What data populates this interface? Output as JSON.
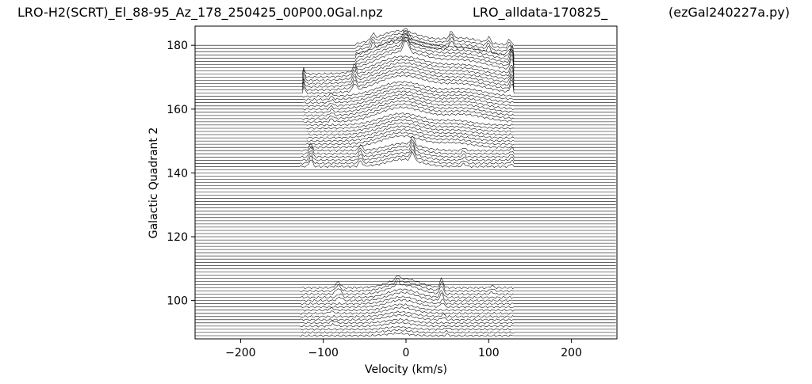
{
  "titles": {
    "left": "LRO-H2(SCRT)_El_88-95_Az_178_250425_00P00.0Gal.npz",
    "middle": "LRO_alldata-170825_",
    "right": "(ezGal240227a.py)"
  },
  "chart_data": {
    "type": "line",
    "subtype": "stacked-offset-spectra",
    "xlabel": "Velocity (km/s)",
    "ylabel": "Galactic Quadrant 2",
    "xlim": [
      -255,
      255
    ],
    "ylim": [
      88,
      186
    ],
    "xticks": [
      -200,
      -100,
      0,
      100,
      200
    ],
    "yticks": [
      100,
      120,
      140,
      160,
      180
    ],
    "grid": false,
    "line_color": "#000000",
    "series": [
      {
        "galactic_longitude": 90,
        "spectrum_extent_kms": [
          -128,
          130
        ],
        "features": [
          {
            "v": -10,
            "amp": 0.8,
            "w": 14
          },
          {
            "v": 50,
            "amp": 0.5,
            "w": 2
          }
        ]
      },
      {
        "galactic_longitude": 92,
        "spectrum_extent_kms": [
          -128,
          130
        ],
        "features": [
          {
            "v": -8,
            "amp": 1.2,
            "w": 15
          },
          {
            "v": -88,
            "amp": 0.6,
            "w": 3
          }
        ]
      },
      {
        "galactic_longitude": 94,
        "spectrum_extent_kms": [
          -128,
          130
        ],
        "features": [
          {
            "v": -7,
            "amp": 1.6,
            "w": 16
          },
          {
            "v": 45,
            "amp": 0.8,
            "w": 2
          }
        ]
      },
      {
        "galactic_longitude": 96,
        "spectrum_extent_kms": [
          -128,
          130
        ],
        "features": [
          {
            "v": -6,
            "amp": 2.0,
            "w": 16
          },
          {
            "v": -90,
            "amp": 0.7,
            "w": 3
          }
        ]
      },
      {
        "galactic_longitude": 98,
        "spectrum_extent_kms": [
          -128,
          130
        ],
        "features": [
          {
            "v": -5,
            "amp": 2.4,
            "w": 17
          },
          {
            "v": 44,
            "amp": 1.5,
            "w": 2
          }
        ]
      },
      {
        "galactic_longitude": 100,
        "spectrum_extent_kms": [
          -128,
          130
        ],
        "features": [
          {
            "v": -4,
            "amp": 2.8,
            "w": 17
          },
          {
            "v": -80,
            "amp": 1.2,
            "w": 3
          },
          {
            "v": 43,
            "amp": 2.5,
            "w": 2
          }
        ]
      },
      {
        "galactic_longitude": 102,
        "spectrum_extent_kms": [
          -128,
          130
        ],
        "features": [
          {
            "v": -3,
            "amp": 3.2,
            "w": 18
          },
          {
            "v": -82,
            "amp": 2.0,
            "w": 3
          },
          {
            "v": -10,
            "amp": 1.5,
            "w": 2
          },
          {
            "v": 43,
            "amp": 3.0,
            "w": 2
          },
          {
            "v": 104,
            "amp": 0.8,
            "w": 2
          }
        ]
      },
      {
        "galactic_longitude": 144,
        "spectrum_extent_kms": [
          -128,
          130
        ],
        "features": [
          {
            "v": -3,
            "amp": 2.5,
            "w": 20
          },
          {
            "v": -115,
            "amp": 2.5,
            "w": 2
          },
          {
            "v": -55,
            "amp": 2.0,
            "w": 2
          },
          {
            "v": 8,
            "amp": 3.0,
            "w": 2
          },
          {
            "v": 70,
            "amp": 1.0,
            "w": 2
          },
          {
            "v": 128,
            "amp": 1.0,
            "w": 2
          }
        ]
      },
      {
        "galactic_longitude": 150,
        "spectrum_extent_kms": [
          -120,
          130
        ],
        "features": [
          {
            "v": -5,
            "amp": 4.0,
            "w": 25
          },
          {
            "v": 60,
            "amp": 1.5,
            "w": 20
          }
        ]
      },
      {
        "galactic_longitude": 160,
        "spectrum_extent_kms": [
          -125,
          130
        ],
        "features": [
          {
            "v": -5,
            "amp": 5.0,
            "w": 28
          },
          {
            "v": 70,
            "amp": 2.5,
            "w": 25
          },
          {
            "v": -90,
            "amp": 1.0,
            "w": 2
          }
        ]
      },
      {
        "galactic_longitude": 168,
        "spectrum_extent_kms": [
          -125,
          130
        ],
        "features": [
          {
            "v": -5,
            "amp": 6.0,
            "w": 30
          },
          {
            "v": 70,
            "amp": 3.0,
            "w": 28
          },
          {
            "v": -125,
            "amp": 3.0,
            "w": 2
          },
          {
            "v": -62,
            "amp": 2.5,
            "w": 2
          },
          {
            "v": 128,
            "amp": 3.0,
            "w": 2
          }
        ]
      },
      {
        "galactic_longitude": 174,
        "spectrum_extent_kms": [
          -60,
          130
        ],
        "features": [
          {
            "v": -5,
            "amp": 6.5,
            "w": 30
          },
          {
            "v": 70,
            "amp": 3.5,
            "w": 30
          },
          {
            "v": 0,
            "amp": 4.0,
            "w": 3
          },
          {
            "v": 128,
            "amp": 4.0,
            "w": 2
          }
        ]
      },
      {
        "galactic_longitude": 179,
        "spectrum_extent_kms": [
          -60,
          130
        ],
        "features": [
          {
            "v": -8,
            "amp": 5.0,
            "w": 25
          },
          {
            "v": 65,
            "amp": 2.5,
            "w": 25
          },
          {
            "v": -40,
            "amp": 2.0,
            "w": 2
          },
          {
            "v": 55,
            "amp": 2.5,
            "w": 2
          },
          {
            "v": 100,
            "amp": 2.0,
            "w": 2
          },
          {
            "v": 125,
            "amp": 2.0,
            "w": 2
          }
        ]
      }
    ]
  }
}
